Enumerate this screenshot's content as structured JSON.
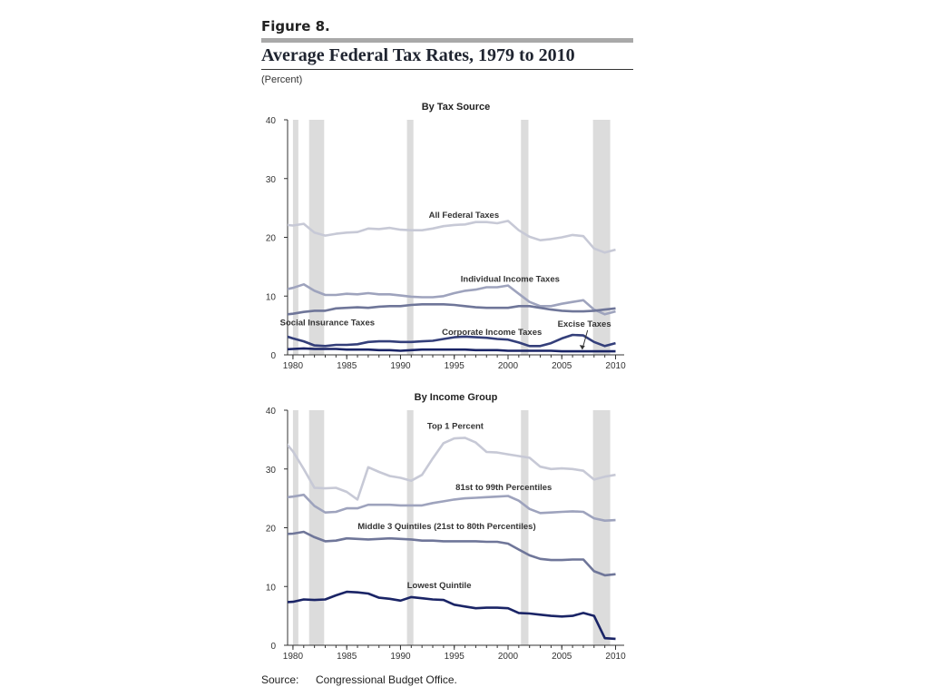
{
  "figure": {
    "label": "Figure 8.",
    "title": "Average Federal Tax Rates, 1979 to 2010",
    "units": "(Percent)",
    "source_label": "Source:",
    "source_text": "Congressional Budget Office."
  },
  "colors": {
    "shade": "#dcdcdc",
    "light_series": "#c7c9d6",
    "mid_series": "#9ea3bd",
    "mid_dark_series": "#6f7699",
    "dark_series": "#343f7a",
    "darkest_series": "#1a2466",
    "axis": "#333333"
  },
  "chart_data": [
    {
      "type": "line",
      "title": "By Tax Source",
      "ylim": [
        0,
        40
      ],
      "yticks": [
        "0",
        "10",
        "20",
        "30",
        "40"
      ],
      "xlim": [
        1979.5,
        2010.8
      ],
      "xticks": [
        "1980",
        "1985",
        "1990",
        "1995",
        "2000",
        "2005",
        "2010"
      ],
      "shaded_periods": [
        [
          1980,
          1980.5
        ],
        [
          1981.5,
          1982.9
        ],
        [
          1990.6,
          1991.2
        ],
        [
          2001.2,
          2001.9
        ],
        [
          2007.9,
          2009.5
        ]
      ],
      "shaded_note": "recession bands",
      "x": [
        1979,
        1980,
        1981,
        1982,
        1983,
        1984,
        1985,
        1986,
        1987,
        1988,
        1989,
        1990,
        1991,
        1992,
        1993,
        1994,
        1995,
        1996,
        1997,
        1998,
        1999,
        2000,
        2001,
        2002,
        2003,
        2004,
        2005,
        2006,
        2007,
        2008,
        2009,
        2010
      ],
      "series": [
        {
          "name": "All Federal Taxes",
          "color_key": "light_series",
          "values": [
            22.2,
            22.0,
            22.3,
            20.8,
            20.3,
            20.6,
            20.8,
            20.9,
            21.5,
            21.4,
            21.6,
            21.3,
            21.2,
            21.2,
            21.5,
            21.9,
            22.1,
            22.2,
            22.6,
            22.6,
            22.4,
            22.8,
            21.2,
            20.1,
            19.5,
            19.7,
            20.0,
            20.4,
            20.2,
            18.1,
            17.4,
            17.9
          ]
        },
        {
          "name": "Individual Income Taxes",
          "color_key": "mid_series",
          "values": [
            11.0,
            11.4,
            12.0,
            10.9,
            10.2,
            10.2,
            10.4,
            10.3,
            10.5,
            10.3,
            10.3,
            10.1,
            9.9,
            9.8,
            9.8,
            10.0,
            10.5,
            10.9,
            11.1,
            11.5,
            11.5,
            11.8,
            10.4,
            9.0,
            8.3,
            8.3,
            8.7,
            9.0,
            9.3,
            7.7,
            6.9,
            7.4
          ]
        },
        {
          "name": "Social Insurance Taxes",
          "color_key": "mid_dark_series",
          "values": [
            6.8,
            7.0,
            7.3,
            7.5,
            7.5,
            7.9,
            8.0,
            8.1,
            8.0,
            8.2,
            8.3,
            8.3,
            8.5,
            8.6,
            8.6,
            8.6,
            8.5,
            8.3,
            8.1,
            8.0,
            8.0,
            8.0,
            8.3,
            8.3,
            8.0,
            7.7,
            7.5,
            7.4,
            7.4,
            7.5,
            7.7,
            7.9
          ]
        },
        {
          "name": "Corporate Income Taxes",
          "color_key": "dark_series",
          "values": [
            3.4,
            2.8,
            2.3,
            1.6,
            1.5,
            1.7,
            1.7,
            1.8,
            2.2,
            2.3,
            2.3,
            2.2,
            2.2,
            2.3,
            2.4,
            2.7,
            3.0,
            3.1,
            3.0,
            2.9,
            2.7,
            2.6,
            2.1,
            1.5,
            1.5,
            2.0,
            2.8,
            3.4,
            3.3,
            2.2,
            1.5,
            2.0
          ]
        },
        {
          "name": "Excise Taxes",
          "color_key": "darkest_series",
          "values": [
            0.9,
            1.0,
            1.1,
            1.0,
            1.0,
            1.0,
            0.9,
            0.9,
            0.9,
            0.8,
            0.8,
            0.7,
            0.8,
            0.9,
            0.9,
            0.9,
            0.9,
            0.9,
            0.8,
            0.8,
            0.8,
            0.7,
            0.7,
            0.7,
            0.7,
            0.7,
            0.6,
            0.6,
            0.6,
            0.6,
            0.6,
            0.6
          ]
        }
      ],
      "annotations": [
        {
          "text": "All Federal Taxes",
          "x": 1995.9,
          "y": 23.3
        },
        {
          "text": "Individual Income Taxes",
          "x": 2000.2,
          "y": 12.4
        },
        {
          "text": "Social Insurance Taxes",
          "x": 1983.2,
          "y": 5.0
        },
        {
          "text": "Corporate Income Taxes",
          "x": 1998.5,
          "y": 3.4
        },
        {
          "text": "Excise Taxes",
          "x": 2007.1,
          "y": 4.8
        }
      ]
    },
    {
      "type": "line",
      "title": "By Income Group",
      "ylim": [
        0,
        40
      ],
      "yticks": [
        "0",
        "10",
        "20",
        "30",
        "40"
      ],
      "xlim": [
        1979.5,
        2010.8
      ],
      "xticks": [
        "1980",
        "1985",
        "1990",
        "1995",
        "2000",
        "2005",
        "2010"
      ],
      "shaded_periods": [
        [
          1980,
          1980.5
        ],
        [
          1981.5,
          1982.9
        ],
        [
          1990.6,
          1991.2
        ],
        [
          2001.2,
          2001.9
        ],
        [
          2007.9,
          2009.5
        ]
      ],
      "x": [
        1979,
        1980,
        1981,
        1982,
        1983,
        1984,
        1985,
        1986,
        1987,
        1988,
        1989,
        1990,
        1991,
        1992,
        1993,
        1994,
        1995,
        1996,
        1997,
        1998,
        1999,
        2000,
        2001,
        2002,
        2003,
        2004,
        2005,
        2006,
        2007,
        2008,
        2009,
        2010
      ],
      "series": [
        {
          "name": "Top 1 Percent",
          "color_key": "light_series",
          "values": [
            35.1,
            33.0,
            30.0,
            26.8,
            26.7,
            26.8,
            26.1,
            24.8,
            30.3,
            29.5,
            28.8,
            28.5,
            28.0,
            29.0,
            31.8,
            34.4,
            35.2,
            35.3,
            34.5,
            32.9,
            32.8,
            32.5,
            32.2,
            31.9,
            30.4,
            30.0,
            30.1,
            30.0,
            29.7,
            28.2,
            28.7,
            29.0
          ]
        },
        {
          "name": "81st to 99th Percentiles",
          "color_key": "mid_series",
          "values": [
            25.1,
            25.3,
            25.6,
            23.7,
            22.6,
            22.7,
            23.3,
            23.3,
            23.9,
            23.9,
            23.9,
            23.8,
            23.8,
            23.8,
            24.2,
            24.5,
            24.8,
            25.0,
            25.1,
            25.2,
            25.3,
            25.4,
            24.6,
            23.2,
            22.5,
            22.6,
            22.7,
            22.8,
            22.7,
            21.6,
            21.2,
            21.3
          ]
        },
        {
          "name": "Middle 3 Quintiles (21st to 80th Percentiles)",
          "color_key": "mid_dark_series",
          "values": [
            18.9,
            19.0,
            19.3,
            18.4,
            17.7,
            17.8,
            18.2,
            18.1,
            18.0,
            18.1,
            18.2,
            18.1,
            18.0,
            17.8,
            17.8,
            17.7,
            17.7,
            17.7,
            17.7,
            17.6,
            17.6,
            17.3,
            16.3,
            15.3,
            14.7,
            14.5,
            14.5,
            14.6,
            14.6,
            12.6,
            11.9,
            12.1
          ]
        },
        {
          "name": "Lowest Quintile",
          "color_key": "darkest_series",
          "values": [
            7.3,
            7.4,
            7.8,
            7.7,
            7.8,
            8.5,
            9.1,
            9.0,
            8.8,
            8.1,
            7.9,
            7.6,
            8.2,
            8.0,
            7.8,
            7.7,
            6.9,
            6.6,
            6.3,
            6.4,
            6.4,
            6.3,
            5.5,
            5.4,
            5.2,
            5.0,
            4.9,
            5.0,
            5.5,
            5.0,
            1.2,
            1.1
          ]
        }
      ],
      "annotations": [
        {
          "text": "Top 1 Percent",
          "x": 1995.1,
          "y": 36.8
        },
        {
          "text": "81st to 99th Percentiles",
          "x": 1999.6,
          "y": 26.4
        },
        {
          "text": "Middle 3 Quintiles (21st to 80th Percentiles)",
          "x": 1994.3,
          "y": 19.8
        },
        {
          "text": "Lowest Quintile",
          "x": 1993.6,
          "y": 9.7
        }
      ]
    }
  ]
}
